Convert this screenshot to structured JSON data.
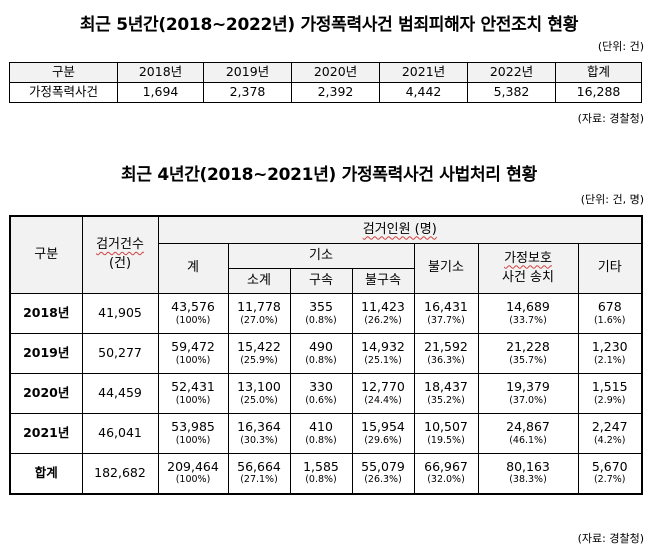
{
  "table1": {
    "title": "최근 5년간(2018~2022년) 가정폭력사건 범죄피해자 안전조치 현황",
    "unit": "(단위: 건)",
    "source": "(자료: 경찰청)",
    "headers": [
      "구분",
      "2018년",
      "2019년",
      "2020년",
      "2021년",
      "2022년",
      "합계"
    ],
    "row": [
      "가정폭력사건",
      "1,694",
      "2,378",
      "2,392",
      "4,442",
      "5,382",
      "16,288"
    ]
  },
  "table2": {
    "title": "최근 4년간(2018~2021년) 가정폭력사건 사법처리 현황",
    "unit": "(단위: 건, 명)",
    "source": "(자료: 경찰청)",
    "headers": {
      "gubun": "구분",
      "cases": "검거건수",
      "cases_unit": "(건)",
      "persons": "검거인원 (명)",
      "total": "계",
      "indict": "기소",
      "subtotal": "소계",
      "detained": "구속",
      "not_detained": "불구속",
      "non_indict": "불기소",
      "protection": "가정보호",
      "protection2": "사건 송치",
      "other": "기타"
    },
    "rows": [
      {
        "label": "2018년",
        "cases": "41,905",
        "total": "43,576",
        "total_p": "(100%)",
        "sub": "11,778",
        "sub_p": "(27.0%)",
        "det": "355",
        "det_p": "(0.8%)",
        "nodet": "11,423",
        "nodet_p": "(26.2%)",
        "nonind": "16,431",
        "nonind_p": "(37.7%)",
        "prot": "14,689",
        "prot_p": "(33.7%)",
        "other": "678",
        "other_p": "(1.6%)"
      },
      {
        "label": "2019년",
        "cases": "50,277",
        "total": "59,472",
        "total_p": "(100%)",
        "sub": "15,422",
        "sub_p": "(25.9%)",
        "det": "490",
        "det_p": "(0.8%)",
        "nodet": "14,932",
        "nodet_p": "(25.1%)",
        "nonind": "21,592",
        "nonind_p": "(36.3%)",
        "prot": "21,228",
        "prot_p": "(35.7%)",
        "other": "1,230",
        "other_p": "(2.1%)"
      },
      {
        "label": "2020년",
        "cases": "44,459",
        "total": "52,431",
        "total_p": "(100%)",
        "sub": "13,100",
        "sub_p": "(25.0%)",
        "det": "330",
        "det_p": "(0.6%)",
        "nodet": "12,770",
        "nodet_p": "(24.4%)",
        "nonind": "18,437",
        "nonind_p": "(35.2%)",
        "prot": "19,379",
        "prot_p": "(37.0%)",
        "other": "1,515",
        "other_p": "(2.9%)"
      },
      {
        "label": "2021년",
        "cases": "46,041",
        "total": "53,985",
        "total_p": "(100%)",
        "sub": "16,364",
        "sub_p": "(30.3%)",
        "det": "410",
        "det_p": "(0.8%)",
        "nodet": "15,954",
        "nodet_p": "(29.6%)",
        "nonind": "10,507",
        "nonind_p": "(19.5%)",
        "prot": "24,867",
        "prot_p": "(46.1%)",
        "other": "2,247",
        "other_p": "(4.2%)"
      },
      {
        "label": "합계",
        "cases": "182,682",
        "total": "209,464",
        "total_p": "(100%)",
        "sub": "56,664",
        "sub_p": "(27.1%)",
        "det": "1,585",
        "det_p": "(0.8%)",
        "nodet": "55,079",
        "nodet_p": "(26.3%)",
        "nonind": "66,967",
        "nonind_p": "(32.0%)",
        "prot": "80,163",
        "prot_p": "(38.3%)",
        "other": "5,670",
        "other_p": "(2.7%)"
      }
    ]
  }
}
